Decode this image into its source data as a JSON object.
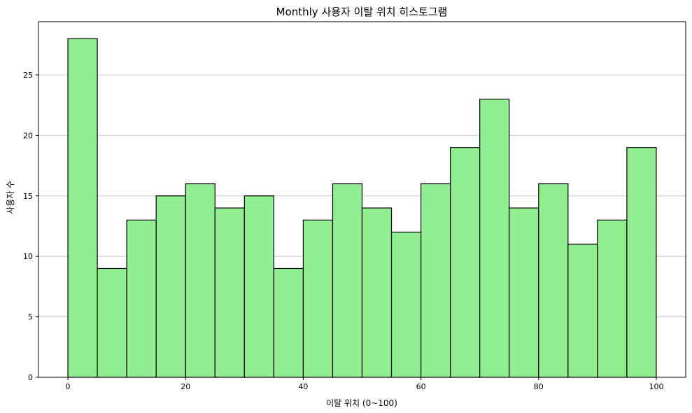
{
  "chart_data": {
    "type": "bar",
    "subtype": "histogram",
    "title": "Monthly 사용자 이탈 위치 히스토그램",
    "xlabel": "이탈 위치 (0~100)",
    "ylabel": "사용자 수",
    "bin_edges": [
      0,
      5,
      10,
      15,
      20,
      25,
      30,
      35,
      40,
      45,
      50,
      55,
      60,
      65,
      70,
      75,
      80,
      85,
      90,
      95,
      100
    ],
    "values": [
      28,
      9,
      13,
      15,
      16,
      14,
      15,
      9,
      13,
      16,
      14,
      12,
      16,
      19,
      23,
      14,
      16,
      11,
      13,
      19
    ],
    "xlim": [
      -5,
      105
    ],
    "ylim": [
      0,
      29.4
    ],
    "xticks": [
      0,
      20,
      40,
      60,
      80,
      100
    ],
    "yticks": [
      0,
      5,
      10,
      15,
      20,
      25
    ],
    "grid": "y",
    "colors": {
      "bar_fill": "#90EE90",
      "bar_edge": "#000000",
      "grid": "#c8c8c8"
    }
  }
}
